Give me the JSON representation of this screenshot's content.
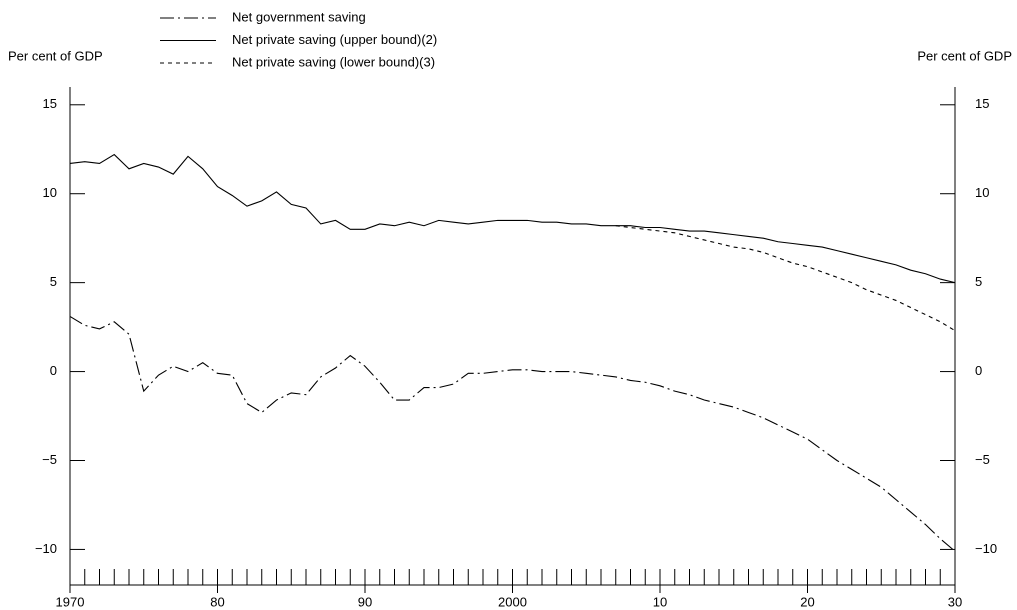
{
  "chart_data": {
    "type": "line",
    "y_label": "Per cent of GDP",
    "y2_label": "Per cent of GDP",
    "x": [
      1970,
      1971,
      1972,
      1973,
      1974,
      1975,
      1976,
      1977,
      1978,
      1979,
      1980,
      1981,
      1982,
      1983,
      1984,
      1985,
      1986,
      1987,
      1988,
      1989,
      1990,
      1991,
      1992,
      1993,
      1994,
      1995,
      1996,
      1997,
      1998,
      1999,
      2000,
      2001,
      2002,
      2003,
      2004,
      2005,
      2006,
      2007,
      2008,
      2009,
      2010,
      2011,
      2012,
      2013,
      2014,
      2015,
      2016,
      2017,
      2018,
      2019,
      2020,
      2021,
      2022,
      2023,
      2024,
      2025,
      2026,
      2027,
      2028,
      2029,
      2030
    ],
    "series": [
      {
        "name": "Net government saving",
        "color": "#000000",
        "dash": "14,4,2,4",
        "values": [
          3.1,
          2.6,
          2.4,
          2.8,
          2.1,
          -1.1,
          -0.2,
          0.3,
          0.0,
          0.5,
          -0.1,
          -0.2,
          -1.8,
          -2.3,
          -1.6,
          -1.2,
          -1.3,
          -0.3,
          0.2,
          0.9,
          0.3,
          -0.6,
          -1.6,
          -1.6,
          -0.9,
          -0.9,
          -0.7,
          -0.1,
          -0.1,
          0.0,
          0.1,
          0.1,
          0.0,
          0.0,
          0.0,
          -0.1,
          -0.2,
          -0.3,
          -0.5,
          -0.6,
          -0.8,
          -1.1,
          -1.3,
          -1.6,
          -1.8,
          -2.0,
          -2.3,
          -2.6,
          -3.0,
          -3.4,
          -3.8,
          -4.4,
          -5.0,
          -5.5,
          -6.0,
          -6.5,
          -7.2,
          -7.9,
          -8.6,
          -9.4,
          -10.1
        ]
      },
      {
        "name": "Net private saving (upper bound)(2)",
        "color": "#000000",
        "dash": "none",
        "values": [
          11.7,
          11.8,
          11.7,
          12.2,
          11.4,
          11.7,
          11.5,
          11.1,
          12.1,
          11.4,
          10.4,
          9.9,
          9.3,
          9.6,
          10.1,
          9.4,
          9.2,
          8.3,
          8.5,
          8.0,
          8.0,
          8.3,
          8.2,
          8.4,
          8.2,
          8.5,
          8.4,
          8.3,
          8.4,
          8.5,
          8.5,
          8.5,
          8.4,
          8.4,
          8.3,
          8.3,
          8.2,
          8.2,
          8.2,
          8.1,
          8.1,
          8.0,
          7.9,
          7.9,
          7.8,
          7.7,
          7.6,
          7.5,
          7.3,
          7.2,
          7.1,
          7.0,
          6.8,
          6.6,
          6.4,
          6.2,
          6.0,
          5.7,
          5.5,
          5.2,
          5.0
        ]
      },
      {
        "name": "Net private saving (lower bound)(3)",
        "color": "#000000",
        "dash": "4,4",
        "values": [
          null,
          null,
          null,
          null,
          null,
          null,
          null,
          null,
          null,
          null,
          null,
          null,
          null,
          null,
          null,
          null,
          null,
          null,
          null,
          null,
          null,
          null,
          null,
          null,
          null,
          null,
          null,
          null,
          null,
          null,
          null,
          null,
          null,
          null,
          null,
          null,
          null,
          8.2,
          8.1,
          8.0,
          7.9,
          7.8,
          7.6,
          7.4,
          7.2,
          7.0,
          6.9,
          6.7,
          6.4,
          6.1,
          5.9,
          5.6,
          5.3,
          5.0,
          4.6,
          4.3,
          4.0,
          3.6,
          3.2,
          2.8,
          2.3
        ]
      }
    ],
    "xlim": [
      1970,
      2030
    ],
    "xticks": [
      1970,
      {
        "value": 1980,
        "label": "80"
      },
      {
        "value": 1990,
        "label": "90"
      },
      2000,
      {
        "value": 2010,
        "label": "10"
      },
      {
        "value": 2020,
        "label": "20"
      },
      {
        "value": 2030,
        "label": "30"
      }
    ],
    "xminorticks": [
      1971,
      1972,
      1973,
      1974,
      1975,
      1976,
      1977,
      1978,
      1979,
      1980,
      1981,
      1982,
      1983,
      1984,
      1985,
      1986,
      1987,
      1988,
      1989,
      1990,
      1991,
      1992,
      1993,
      1994,
      1995,
      1996,
      1997,
      1998,
      1999,
      2000,
      2001,
      2002,
      2003,
      2004,
      2005,
      2006,
      2007,
      2008,
      2009,
      2010,
      2011,
      2012,
      2013,
      2014,
      2015,
      2016,
      2017,
      2018,
      2019,
      2020,
      2021,
      2022,
      2023,
      2024,
      2025,
      2026,
      2027,
      2028,
      2029
    ],
    "ylim": [
      -12,
      16
    ],
    "yticks": [
      {
        "value": -10,
        "label": "−10"
      },
      {
        "value": -5,
        "label": "−5"
      },
      0,
      5,
      10,
      15
    ],
    "y2lim": [
      -12,
      16
    ],
    "y2ticks": [
      {
        "value": -10,
        "label": "−10"
      },
      {
        "value": -5,
        "label": "−5"
      },
      0,
      5,
      10,
      15
    ],
    "grid": false
  }
}
